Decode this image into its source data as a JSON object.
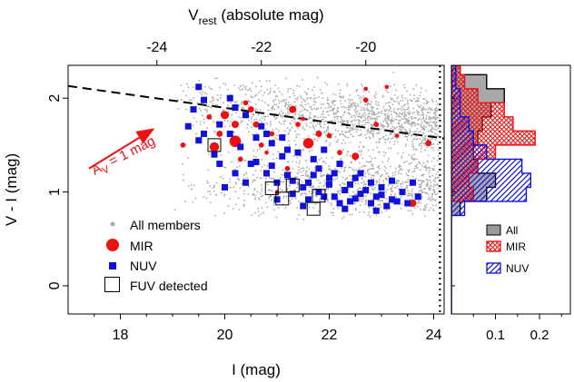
{
  "chart_data": {
    "type": "scatter",
    "axes": {
      "x_bottom": {
        "label": "I (mag)",
        "range": [
          17,
          24.2
        ],
        "ticks": [
          18,
          20,
          22,
          24
        ]
      },
      "x_top": {
        "label_main": "V",
        "label_sub": "rest",
        "label_rest": " (absolute mag)",
        "ticks": [
          -24,
          -22,
          -20
        ],
        "tick_positions_I": [
          18.7,
          20.7,
          22.7
        ]
      },
      "y": {
        "label": "V - I (mag)",
        "range": [
          -0.3,
          2.35
        ],
        "ticks": [
          0,
          1,
          2
        ]
      },
      "hist_x": {
        "range": [
          0,
          0.27
        ],
        "ticks": [
          0.1,
          0.2
        ],
        "tick_labels": [
          "0.1",
          "0.2"
        ]
      }
    },
    "dashed_line": {
      "x": [
        17,
        24.2
      ],
      "y": [
        2.13,
        1.57
      ]
    },
    "dotted_line_x": 24.12,
    "reddening_arrow": {
      "label_main": "A",
      "label_sub": "V",
      "label_rest": " = 1 mag",
      "from": [
        17.4,
        1.25
      ],
      "to": [
        18.6,
        1.66
      ]
    },
    "legend": [
      {
        "key": "all",
        "label": "All members"
      },
      {
        "key": "mir",
        "label": "MIR"
      },
      {
        "key": "nuv",
        "label": "NUV"
      },
      {
        "key": "fuv",
        "label": "FUV detected"
      }
    ],
    "hist_legend": [
      "All",
      "MIR",
      "NUV"
    ],
    "colors": {
      "all": "#aaaaaa",
      "mir": "#ee1111",
      "nuv": "#1111dd",
      "fuv": "#000000",
      "hist_all": "#999999"
    },
    "series": [
      {
        "name": "MIR",
        "points": [
          [
            19.8,
            1.48,
            0.09
          ],
          [
            20.2,
            1.72,
            0.07
          ],
          [
            20.5,
            1.88,
            0.06
          ],
          [
            20.0,
            1.82,
            0.08
          ],
          [
            20.2,
            1.54,
            0.11
          ],
          [
            21.6,
            1.52,
            0.1
          ],
          [
            21.3,
            1.88,
            0.07
          ],
          [
            22.5,
            1.38,
            0.07
          ],
          [
            21.8,
            1.62,
            0.06
          ],
          [
            22.7,
            1.98,
            0.05
          ],
          [
            23.6,
            0.88,
            0.07
          ],
          [
            23.9,
            1.52,
            0.06
          ],
          [
            22.2,
            1.42,
            0.05
          ],
          [
            20.6,
            1.72,
            0.06
          ],
          [
            19.2,
            1.5,
            0.05
          ],
          [
            20.9,
            1.62,
            0.05
          ],
          [
            23.1,
            2.12,
            0.04
          ],
          [
            21.2,
            1.25,
            0.05
          ],
          [
            20.4,
            1.95,
            0.05
          ],
          [
            22.9,
            1.72,
            0.05
          ],
          [
            20.7,
            1.5,
            0.05
          ],
          [
            21.0,
            1.0,
            0.04
          ],
          [
            19.9,
            1.62,
            0.06
          ],
          [
            21.5,
            1.78,
            0.04
          ],
          [
            22.0,
            1.6,
            0.05
          ],
          [
            23.3,
            1.6,
            0.04
          ],
          [
            20.3,
            1.35,
            0.05
          ],
          [
            22.7,
            2.1,
            0.04
          ],
          [
            19.7,
            1.8,
            0.05
          ],
          [
            20.8,
            1.42,
            0.04
          ],
          [
            21.4,
            1.72,
            0.05
          ]
        ]
      },
      {
        "name": "NUV",
        "points": [
          [
            19.6,
            1.62
          ],
          [
            19.8,
            1.4
          ],
          [
            20.1,
            1.62
          ],
          [
            20.4,
            1.82
          ],
          [
            20.6,
            1.58
          ],
          [
            20.9,
            1.52
          ],
          [
            21.1,
            1.38
          ],
          [
            21.4,
            1.42
          ],
          [
            21.7,
            1.18
          ],
          [
            22.0,
            1.08
          ],
          [
            22.3,
            1.02
          ],
          [
            22.6,
            0.98
          ],
          [
            22.9,
            0.95
          ],
          [
            23.2,
            0.92
          ],
          [
            23.5,
            0.88
          ],
          [
            21.2,
            1.18
          ],
          [
            21.5,
            1.05
          ],
          [
            21.8,
            1.0
          ],
          [
            22.1,
            0.95
          ],
          [
            22.4,
            0.9
          ],
          [
            22.8,
            0.88
          ],
          [
            23.1,
            0.85
          ],
          [
            21.0,
            1.1
          ],
          [
            21.3,
            0.98
          ],
          [
            21.6,
            0.92
          ],
          [
            20.8,
            1.2
          ],
          [
            20.5,
            1.3
          ],
          [
            20.3,
            1.48
          ],
          [
            19.9,
            1.72
          ],
          [
            20.2,
            1.9
          ],
          [
            19.5,
            2.12
          ],
          [
            19.4,
            1.88
          ],
          [
            20.7,
            1.7
          ],
          [
            21.9,
            1.45
          ],
          [
            22.2,
            1.3
          ],
          [
            22.5,
            1.15
          ],
          [
            22.8,
            1.1
          ],
          [
            23.0,
            1.05
          ],
          [
            23.4,
            1.0
          ],
          [
            23.7,
            0.95
          ],
          [
            21.1,
            1.58
          ],
          [
            20.6,
            1.32
          ],
          [
            21.8,
            1.25
          ],
          [
            22.0,
            1.15
          ],
          [
            22.4,
            1.08
          ],
          [
            21.3,
            1.12
          ],
          [
            20.9,
            1.28
          ],
          [
            21.6,
            1.1
          ],
          [
            22.7,
            1.02
          ],
          [
            23.3,
            0.9
          ],
          [
            21.0,
            0.92
          ],
          [
            21.5,
            0.85
          ],
          [
            22.3,
            0.82
          ],
          [
            22.9,
            0.8
          ],
          [
            20.2,
            1.2
          ],
          [
            19.9,
            1.3
          ],
          [
            19.5,
            1.55
          ],
          [
            19.3,
            1.7
          ],
          [
            20.0,
            1.05
          ],
          [
            20.4,
            1.1
          ],
          [
            21.7,
            1.35
          ],
          [
            22.1,
            1.2
          ],
          [
            22.6,
            1.2
          ],
          [
            23.6,
            1.1
          ],
          [
            21.2,
            1.45
          ],
          [
            20.8,
            1.62
          ],
          [
            19.6,
            1.98
          ],
          [
            20.1,
            2.0
          ],
          [
            21.9,
            0.95
          ],
          [
            22.2,
            0.88
          ],
          [
            22.5,
            0.93
          ],
          [
            23.0,
            0.97
          ],
          [
            23.2,
            1.12
          ]
        ]
      },
      {
        "name": "FUV detected",
        "points": [
          [
            19.8,
            1.5
          ],
          [
            20.9,
            1.04
          ],
          [
            21.1,
            0.93
          ],
          [
            21.7,
            0.82
          ],
          [
            21.8,
            0.96
          ],
          [
            21.3,
            1.07
          ]
        ]
      }
    ],
    "histogram_bins": {
      "y_edges": [
        -0.3,
        -0.15,
        0.0,
        0.15,
        0.3,
        0.45,
        0.6,
        0.75,
        0.9,
        1.05,
        1.2,
        1.35,
        1.5,
        1.65,
        1.8,
        1.95,
        2.1,
        2.25,
        2.35
      ]
    },
    "histograms": [
      {
        "name": "All",
        "values": [
          0,
          0,
          0,
          0,
          0,
          0,
          0,
          0.02,
          0.08,
          0.1,
          0.06,
          0.05,
          0.06,
          0.07,
          0.09,
          0.12,
          0.08,
          0.02
        ]
      },
      {
        "name": "MIR",
        "values": [
          0,
          0,
          0,
          0,
          0,
          0,
          0,
          0,
          0.05,
          0.04,
          0.06,
          0.1,
          0.19,
          0.14,
          0.12,
          0.06,
          0.03,
          0.02
        ]
      },
      {
        "name": "NUV",
        "values": [
          0,
          0,
          0,
          0,
          0,
          0,
          0,
          0.03,
          0.17,
          0.18,
          0.16,
          0.08,
          0.05,
          0.04,
          0.02,
          0.02,
          0.01,
          0.01
        ]
      }
    ]
  }
}
